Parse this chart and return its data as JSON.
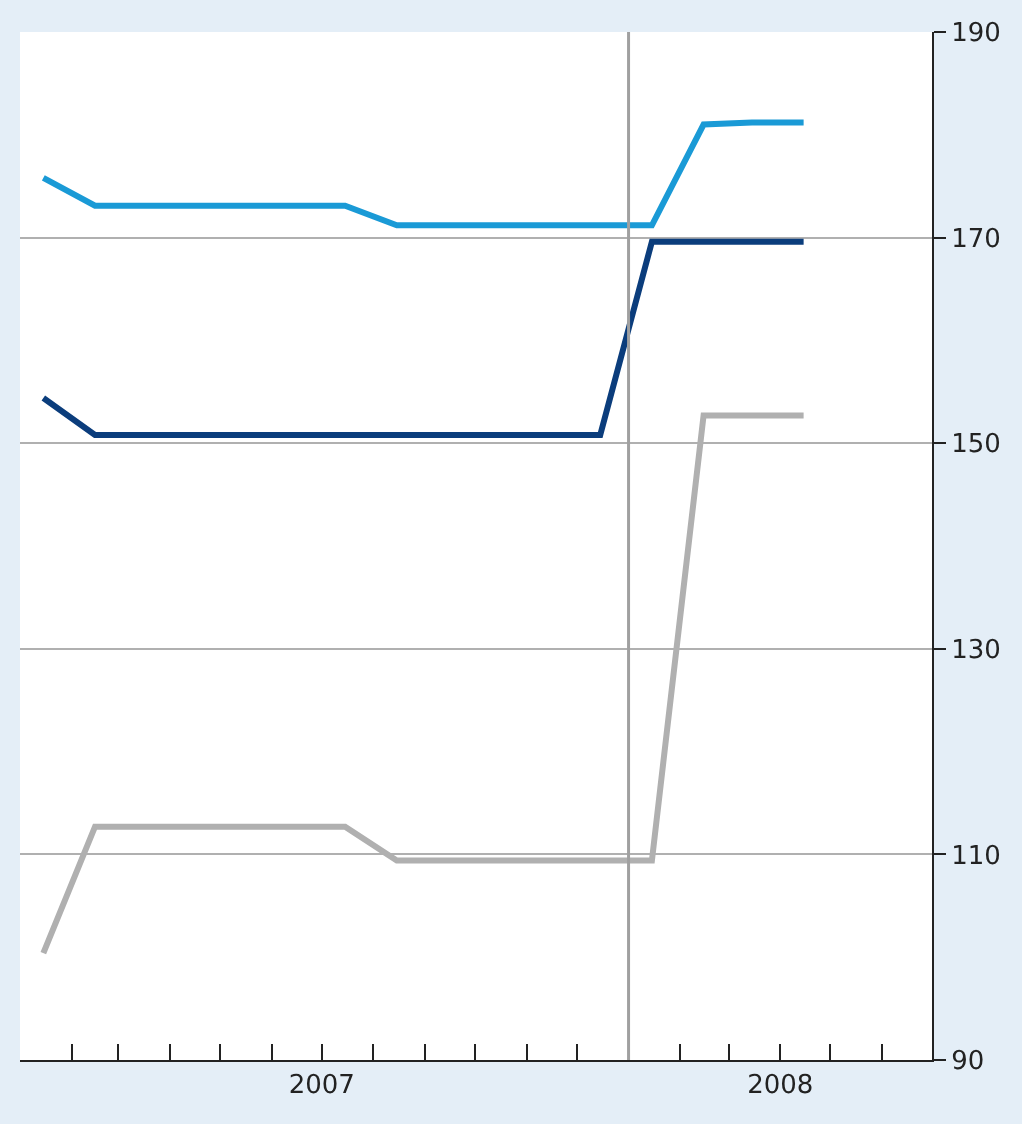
{
  "chart_data": {
    "type": "line",
    "series": [
      {
        "color": "#1a9ad6",
        "x": [
          "2007-01-15",
          "2007-02-15",
          "2007-07-15",
          "2007-08-15",
          "2008-01-15",
          "2008-02-15",
          "2008-03-15",
          "2008-04-15"
        ],
        "values": [
          175.8,
          173.1,
          173.1,
          171.2,
          171.2,
          181,
          181.2,
          181.2
        ]
      },
      {
        "color": "#0b3d7c",
        "x": [
          "2007-01-15",
          "2007-02-15",
          "2007-12-15",
          "2008-01-15",
          "2008-04-15"
        ],
        "values": [
          154.4,
          150.8,
          150.8,
          169.6,
          169.6
        ]
      },
      {
        "color": "#b0b0b0",
        "x": [
          "2007-01-15",
          "2007-02-15",
          "2007-07-15",
          "2007-08-15",
          "2008-01-15",
          "2008-02-15",
          "2008-04-15"
        ],
        "values": [
          100.4,
          112.7,
          112.7,
          109.4,
          109.4,
          152.7,
          152.7
        ]
      }
    ],
    "xlim": [
      "2007-01-01",
      "2008-07-01"
    ],
    "xticks": [
      {
        "value": "2007-02-01",
        "label": null
      },
      {
        "value": "2007-03-01",
        "label": null
      },
      {
        "value": "2007-04-01",
        "label": null
      },
      {
        "value": "2007-05-01",
        "label": null
      },
      {
        "value": "2007-06-01",
        "label": null
      },
      {
        "value": "2007-07-01",
        "label": "2007"
      },
      {
        "value": "2007-08-01",
        "label": null
      },
      {
        "value": "2007-09-01",
        "label": null
      },
      {
        "value": "2007-10-01",
        "label": null
      },
      {
        "value": "2007-11-01",
        "label": null
      },
      {
        "value": "2007-12-01",
        "label": null
      },
      {
        "value": "2008-02-01",
        "label": null
      },
      {
        "value": "2008-03-01",
        "label": null
      },
      {
        "value": "2008-04-01",
        "label": "2008"
      },
      {
        "value": "2008-05-01",
        "label": null
      },
      {
        "value": "2008-06-01",
        "label": null
      }
    ],
    "ylim": [
      90,
      190
    ],
    "yticks": [
      90,
      110,
      130,
      150,
      170,
      190
    ],
    "ref_lines": [
      {
        "axis": "x",
        "value": "2008-01-01",
        "color": "#a0a0a0"
      }
    ],
    "grid": "y",
    "marker": "none",
    "line_style": "solid"
  }
}
